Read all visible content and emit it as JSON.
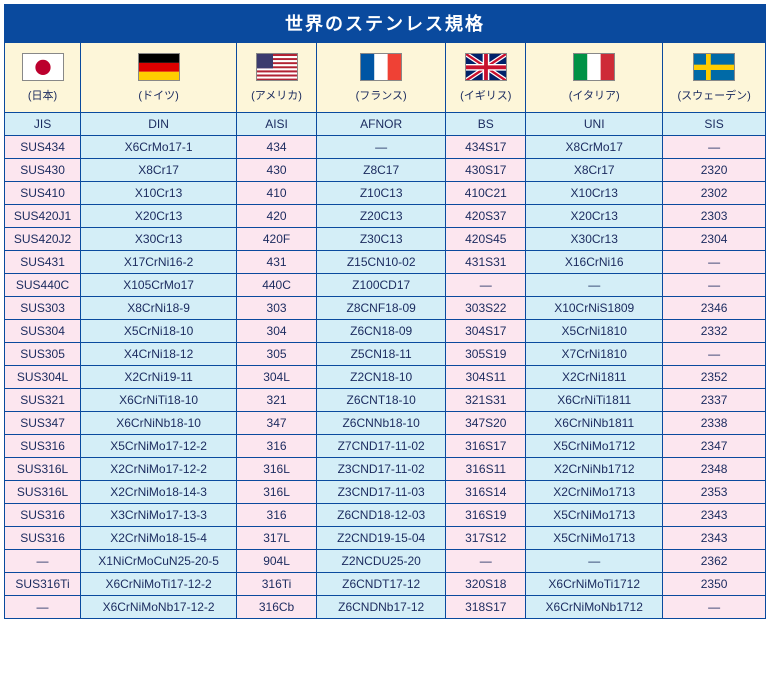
{
  "title": "世界のステンレス規格",
  "colors": {
    "title_bg": "#0a4a9e",
    "title_fg": "#ffffff",
    "header_bg": "#fdf6d9",
    "border": "#0a4a9e",
    "text": "#1a2a5e",
    "pink": "#fce6ef",
    "blue": "#d4eef7"
  },
  "columns": [
    {
      "country": "(日本)",
      "flag": "japan",
      "shade": "pink"
    },
    {
      "country": "(ドイツ)",
      "flag": "germany",
      "shade": "blue"
    },
    {
      "country": "(アメリカ)",
      "flag": "usa",
      "shade": "pink"
    },
    {
      "country": "(フランス)",
      "flag": "france",
      "shade": "blue"
    },
    {
      "country": "(イギリス)",
      "flag": "uk",
      "shade": "pink"
    },
    {
      "country": "(イタリア)",
      "flag": "italy",
      "shade": "blue"
    },
    {
      "country": "(スウェーデン)",
      "flag": "sweden",
      "shade": "pink"
    }
  ],
  "standards_row": [
    "JIS",
    "DIN",
    "AISI",
    "AFNOR",
    "BS",
    "UNI",
    "SIS"
  ],
  "rows": [
    [
      "SUS434",
      "X6CrMo17-1",
      "434",
      "—",
      "434S17",
      "X8CrMo17",
      "—"
    ],
    [
      "SUS430",
      "X8Cr17",
      "430",
      "Z8C17",
      "430S17",
      "X8Cr17",
      "2320"
    ],
    [
      "SUS410",
      "X10Cr13",
      "410",
      "Z10C13",
      "410C21",
      "X10Cr13",
      "2302"
    ],
    [
      "SUS420J1",
      "X20Cr13",
      "420",
      "Z20C13",
      "420S37",
      "X20Cr13",
      "2303"
    ],
    [
      "SUS420J2",
      "X30Cr13",
      "420F",
      "Z30C13",
      "420S45",
      "X30Cr13",
      "2304"
    ],
    [
      "SUS431",
      "X17CrNi16-2",
      "431",
      "Z15CN10-02",
      "431S31",
      "X16CrNi16",
      "—"
    ],
    [
      "SUS440C",
      "X105CrMo17",
      "440C",
      "Z100CD17",
      "—",
      "—",
      "—"
    ],
    [
      "SUS303",
      "X8CrNi18-9",
      "303",
      "Z8CNF18-09",
      "303S22",
      "X10CrNiS1809",
      "2346"
    ],
    [
      "SUS304",
      "X5CrNi18-10",
      "304",
      "Z6CN18-09",
      "304S17",
      "X5CrNi1810",
      "2332"
    ],
    [
      "SUS305",
      "X4CrNi18-12",
      "305",
      "Z5CN18-11",
      "305S19",
      "X7CrNi1810",
      "—"
    ],
    [
      "SUS304L",
      "X2CrNi19-11",
      "304L",
      "Z2CN18-10",
      "304S11",
      "X2CrNi1811",
      "2352"
    ],
    [
      "SUS321",
      "X6CrNiTi18-10",
      "321",
      "Z6CNT18-10",
      "321S31",
      "X6CrNiTi1811",
      "2337"
    ],
    [
      "SUS347",
      "X6CrNiNb18-10",
      "347",
      "Z6CNNb18-10",
      "347S20",
      "X6CrNiNb1811",
      "2338"
    ],
    [
      "SUS316",
      "X5CrNiMo17-12-2",
      "316",
      "Z7CND17-11-02",
      "316S17",
      "X5CrNiMo1712",
      "2347"
    ],
    [
      "SUS316L",
      "X2CrNiMo17-12-2",
      "316L",
      "Z3CND17-11-02",
      "316S11",
      "X2CrNiNb1712",
      "2348"
    ],
    [
      "SUS316L",
      "X2CrNiMo18-14-3",
      "316L",
      "Z3CND17-11-03",
      "316S14",
      "X2CrNiMo1713",
      "2353"
    ],
    [
      "SUS316",
      "X3CrNiMo17-13-3",
      "316",
      "Z6CND18-12-03",
      "316S19",
      "X5CrNiMo1713",
      "2343"
    ],
    [
      "SUS316",
      "X2CrNiMo18-15-4",
      "317L",
      "Z2CND19-15-04",
      "317S12",
      "X5CrNiMo1713",
      "2343"
    ],
    [
      "—",
      "X1NiCrMoCuN25-20-5",
      "904L",
      "Z2NCDU25-20",
      "—",
      "—",
      "2362"
    ],
    [
      "SUS316Ti",
      "X6CrNiMoTi17-12-2",
      "316Ti",
      "Z6CNDT17-12",
      "320S18",
      "X6CrNiMoTi1712",
      "2350"
    ],
    [
      "—",
      "X6CrNiMoNb17-12-2",
      "316Cb",
      "Z6CNDNb17-12",
      "318S17",
      "X6CrNiMoNb1712",
      "—"
    ]
  ]
}
